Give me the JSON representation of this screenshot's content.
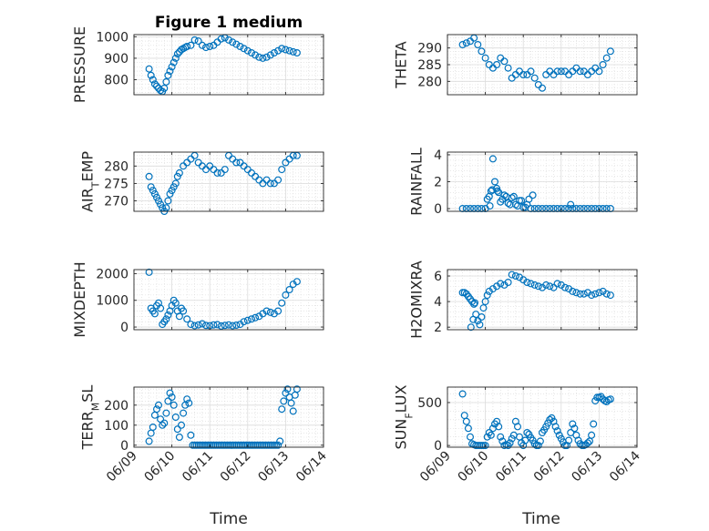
{
  "chart_data": {
    "title": "Figure 1 medium",
    "xlabel": "Time",
    "xticks": [
      "06/09",
      "06/10",
      "06/11",
      "06/12",
      "06/13",
      "06/14"
    ],
    "xlim": [
      0,
      5
    ],
    "marker": "open-circle",
    "marker_color": "#0072BD",
    "grid": "major+minor dotted",
    "panels": [
      {
        "name": "pressure",
        "type": "scatter",
        "ylabel": "PRESSURE",
        "ylabel_sub": "",
        "ylim": [
          730,
          1010
        ],
        "yticks": [
          800,
          900,
          1000
        ],
        "x": [
          0.4,
          0.45,
          0.5,
          0.55,
          0.6,
          0.65,
          0.7,
          0.75,
          0.8,
          0.85,
          0.9,
          0.95,
          1.0,
          1.05,
          1.1,
          1.15,
          1.2,
          1.25,
          1.3,
          1.35,
          1.4,
          1.5,
          1.6,
          1.7,
          1.8,
          1.9,
          2.0,
          2.1,
          2.2,
          2.3,
          2.4,
          2.5,
          2.6,
          2.7,
          2.8,
          2.9,
          3.0,
          3.1,
          3.2,
          3.3,
          3.4,
          3.5,
          3.6,
          3.7,
          3.8,
          3.9,
          4.0,
          4.1,
          4.2,
          4.3
        ],
        "y": [
          850,
          820,
          800,
          780,
          770,
          760,
          750,
          745,
          760,
          790,
          820,
          840,
          860,
          880,
          900,
          920,
          930,
          940,
          945,
          950,
          955,
          960,
          985,
          980,
          960,
          950,
          955,
          960,
          975,
          990,
          995,
          985,
          975,
          965,
          955,
          945,
          935,
          925,
          915,
          905,
          900,
          905,
          915,
          925,
          935,
          945,
          940,
          935,
          930,
          925
        ]
      },
      {
        "name": "theta",
        "type": "scatter",
        "ylabel": "THETA",
        "ylabel_sub": "",
        "ylim": [
          276,
          294
        ],
        "yticks": [
          280,
          285,
          290
        ],
        "x": [
          0.4,
          0.5,
          0.6,
          0.7,
          0.8,
          0.9,
          1.0,
          1.1,
          1.2,
          1.3,
          1.4,
          1.5,
          1.6,
          1.7,
          1.8,
          1.9,
          2.0,
          2.1,
          2.2,
          2.3,
          2.4,
          2.5,
          2.6,
          2.7,
          2.8,
          2.9,
          3.0,
          3.1,
          3.2,
          3.3,
          3.4,
          3.5,
          3.6,
          3.7,
          3.8,
          3.9,
          4.0,
          4.1,
          4.2,
          4.3
        ],
        "y": [
          291,
          291.5,
          292,
          293,
          291,
          289,
          287,
          285,
          284,
          285,
          287,
          286,
          284,
          281,
          282,
          283,
          282,
          282,
          283,
          281,
          279,
          278,
          282,
          283,
          282,
          283,
          283,
          283,
          282,
          283,
          284,
          283,
          283,
          282,
          283,
          284,
          283,
          285,
          287,
          289
        ]
      },
      {
        "name": "air-temp",
        "type": "scatter",
        "ylabel": "AIR",
        "ylabel_sub": "T",
        "ylabel_suffix": "EMP",
        "ylim": [
          267,
          284
        ],
        "yticks": [
          270,
          275,
          280
        ],
        "x": [
          0.4,
          0.45,
          0.5,
          0.55,
          0.6,
          0.65,
          0.7,
          0.75,
          0.8,
          0.85,
          0.9,
          0.95,
          1.0,
          1.05,
          1.1,
          1.15,
          1.2,
          1.3,
          1.4,
          1.5,
          1.6,
          1.7,
          1.8,
          1.9,
          2.0,
          2.1,
          2.2,
          2.3,
          2.4,
          2.5,
          2.6,
          2.7,
          2.8,
          2.9,
          3.0,
          3.1,
          3.2,
          3.3,
          3.4,
          3.5,
          3.6,
          3.7,
          3.8,
          3.9,
          4.0,
          4.1,
          4.2,
          4.3
        ],
        "y": [
          277,
          274,
          273,
          272,
          271,
          270,
          269,
          268,
          267,
          268,
          270,
          272,
          273,
          274,
          275,
          277,
          278,
          280,
          281,
          282,
          283,
          281,
          280,
          279,
          280,
          279,
          278,
          278,
          279,
          283,
          282,
          281,
          281,
          280,
          279,
          278,
          277,
          276,
          275,
          276,
          275,
          275,
          276,
          279,
          281,
          282,
          283,
          283
        ]
      },
      {
        "name": "rainfall",
        "type": "scatter",
        "ylabel": "RAINFALL",
        "ylabel_sub": "",
        "ylim": [
          -0.2,
          4.2
        ],
        "yticks": [
          0,
          2,
          4
        ],
        "x": [
          0.4,
          0.5,
          0.6,
          0.7,
          0.8,
          0.9,
          1.0,
          1.05,
          1.1,
          1.15,
          1.2,
          1.25,
          1.3,
          1.35,
          1.4,
          1.5,
          1.6,
          1.7,
          1.8,
          1.9,
          2.0,
          2.1,
          2.2,
          2.3,
          2.4,
          2.5,
          2.6,
          2.7,
          2.8,
          2.9,
          3.0,
          3.1,
          3.2,
          3.3,
          3.4,
          3.5,
          3.6,
          3.7,
          3.8,
          3.9,
          4.0,
          4.1,
          4.2,
          4.3,
          1.12,
          1.18,
          1.32,
          1.45,
          1.55,
          1.65,
          1.75,
          1.85,
          1.95,
          2.05,
          2.15,
          2.25,
          3.25
        ],
        "y": [
          0,
          0,
          0,
          0,
          0,
          0,
          0,
          0.7,
          0.9,
          1.3,
          3.7,
          2.0,
          1.5,
          1.2,
          0.5,
          1.0,
          0.4,
          0.8,
          0.3,
          0.6,
          0.1,
          0.3,
          0,
          0,
          0,
          0,
          0,
          0,
          0,
          0,
          0,
          0,
          0,
          0,
          0,
          0,
          0,
          0,
          0,
          0,
          0,
          0,
          0,
          0,
          0.2,
          1.4,
          1.3,
          0.7,
          0.9,
          0.3,
          0.9,
          0.2,
          0.6,
          0.1,
          0.7,
          1.0,
          0.3
        ]
      },
      {
        "name": "mixdepth",
        "type": "scatter",
        "ylabel": "MIXDEPTH",
        "ylabel_sub": "",
        "ylim": [
          -100,
          2150
        ],
        "yticks": [
          0,
          1000,
          2000
        ],
        "x": [
          0.4,
          0.45,
          0.5,
          0.55,
          0.6,
          0.65,
          0.7,
          0.75,
          0.8,
          0.85,
          0.9,
          0.95,
          1.0,
          1.05,
          1.1,
          1.15,
          1.2,
          1.25,
          1.3,
          1.4,
          1.5,
          1.6,
          1.7,
          1.8,
          1.9,
          2.0,
          2.1,
          2.2,
          2.3,
          2.4,
          2.5,
          2.6,
          2.7,
          2.8,
          2.9,
          3.0,
          3.1,
          3.2,
          3.3,
          3.4,
          3.5,
          3.6,
          3.7,
          3.8,
          3.9,
          4.0,
          4.1,
          4.2,
          4.3
        ],
        "y": [
          2050,
          700,
          600,
          500,
          800,
          900,
          700,
          100,
          200,
          300,
          450,
          600,
          800,
          1000,
          900,
          600,
          400,
          700,
          600,
          300,
          100,
          50,
          80,
          120,
          60,
          50,
          80,
          90,
          40,
          60,
          80,
          50,
          70,
          100,
          200,
          250,
          300,
          350,
          400,
          500,
          600,
          550,
          500,
          600,
          900,
          1200,
          1400,
          1600,
          1700
        ]
      },
      {
        "name": "h2omixra",
        "type": "scatter",
        "ylabel": "H2OMIXRA",
        "ylabel_sub": "",
        "ylim": [
          1.8,
          6.5
        ],
        "yticks": [
          2,
          4,
          6
        ],
        "x": [
          0.4,
          0.45,
          0.5,
          0.55,
          0.6,
          0.65,
          0.7,
          0.75,
          0.8,
          0.85,
          0.9,
          0.95,
          1.0,
          1.05,
          1.1,
          1.2,
          1.3,
          1.4,
          1.5,
          1.6,
          1.7,
          1.8,
          1.9,
          2.0,
          2.1,
          2.2,
          2.3,
          2.4,
          2.5,
          2.6,
          2.7,
          2.8,
          2.9,
          3.0,
          3.1,
          3.2,
          3.3,
          3.4,
          3.5,
          3.6,
          3.7,
          3.8,
          3.9,
          4.0,
          4.1,
          4.2,
          4.3,
          0.62,
          0.68,
          0.72
        ],
        "y": [
          4.7,
          4.7,
          4.6,
          4.4,
          4.2,
          4.0,
          3.8,
          3.0,
          2.5,
          2.2,
          2.8,
          3.5,
          4.0,
          4.5,
          4.8,
          5.0,
          5.2,
          5.4,
          5.3,
          5.5,
          6.1,
          6.0,
          5.9,
          5.7,
          5.5,
          5.4,
          5.3,
          5.2,
          5.1,
          5.3,
          5.2,
          5.1,
          5.4,
          5.3,
          5.1,
          5.0,
          4.8,
          4.7,
          4.6,
          4.6,
          4.7,
          4.5,
          4.6,
          4.7,
          4.8,
          4.6,
          4.5,
          2.0,
          2.6,
          3.9
        ]
      },
      {
        "name": "terr-msl",
        "type": "scatter",
        "ylabel": "TERR",
        "ylabel_sub": "M",
        "ylabel_suffix": "SL",
        "ylim": [
          -10,
          290
        ],
        "yticks": [
          0,
          100,
          200
        ],
        "x": [
          0.4,
          0.45,
          0.5,
          0.55,
          0.6,
          0.65,
          0.7,
          0.75,
          0.8,
          0.85,
          0.9,
          0.95,
          1.0,
          1.05,
          1.1,
          1.15,
          1.2,
          1.25,
          1.3,
          1.35,
          1.4,
          1.45,
          1.5,
          1.55,
          1.6,
          1.65,
          1.7,
          1.75,
          1.8,
          1.85,
          1.9,
          1.95,
          2.0,
          2.05,
          2.1,
          2.15,
          2.2,
          2.25,
          2.3,
          2.35,
          2.4,
          2.45,
          2.5,
          2.55,
          2.6,
          2.65,
          2.7,
          2.75,
          2.8,
          2.85,
          2.9,
          2.95,
          3.0,
          3.05,
          3.1,
          3.15,
          3.2,
          3.25,
          3.3,
          3.35,
          3.4,
          3.45,
          3.5,
          3.55,
          3.6,
          3.65,
          3.7,
          3.75,
          3.8,
          3.85,
          3.9,
          3.95,
          4.0,
          4.05,
          4.1,
          4.15,
          4.2,
          4.25,
          4.3
        ],
        "y": [
          20,
          60,
          90,
          150,
          180,
          200,
          130,
          100,
          110,
          160,
          220,
          260,
          240,
          200,
          140,
          80,
          40,
          100,
          160,
          200,
          230,
          210,
          50,
          0,
          0,
          0,
          0,
          0,
          0,
          0,
          0,
          0,
          0,
          0,
          0,
          0,
          0,
          0,
          0,
          0,
          0,
          0,
          0,
          0,
          0,
          0,
          0,
          0,
          0,
          0,
          0,
          0,
          0,
          0,
          0,
          0,
          0,
          0,
          0,
          0,
          0,
          0,
          0,
          0,
          0,
          0,
          0,
          0,
          0,
          20,
          180,
          220,
          260,
          280,
          240,
          210,
          170,
          250,
          280
        ]
      },
      {
        "name": "sun-flux",
        "type": "scatter",
        "ylabel": "SUN",
        "ylabel_sub": "F",
        "ylabel_suffix": "LUX",
        "ylim": [
          -20,
          680
        ],
        "yticks": [
          0,
          500
        ],
        "x": [
          0.4,
          0.45,
          0.5,
          0.55,
          0.6,
          0.65,
          0.7,
          0.75,
          0.8,
          0.85,
          0.9,
          0.95,
          1.0,
          1.05,
          1.1,
          1.15,
          1.2,
          1.25,
          1.3,
          1.35,
          1.4,
          1.45,
          1.5,
          1.55,
          1.6,
          1.65,
          1.7,
          1.75,
          1.8,
          1.85,
          1.9,
          1.95,
          2.0,
          2.05,
          2.1,
          2.15,
          2.2,
          2.25,
          2.3,
          2.35,
          2.4,
          2.45,
          2.5,
          2.55,
          2.6,
          2.65,
          2.7,
          2.75,
          2.8,
          2.85,
          2.9,
          2.95,
          3.0,
          3.05,
          3.1,
          3.15,
          3.2,
          3.25,
          3.3,
          3.35,
          3.4,
          3.45,
          3.5,
          3.55,
          3.6,
          3.65,
          3.7,
          3.75,
          3.8,
          3.85,
          3.9,
          3.95,
          4.0,
          4.05,
          4.1,
          4.15,
          4.2,
          4.25,
          4.3
        ],
        "y": [
          600,
          350,
          280,
          200,
          100,
          20,
          10,
          0,
          0,
          0,
          0,
          0,
          0,
          100,
          150,
          120,
          200,
          250,
          280,
          220,
          100,
          50,
          0,
          10,
          0,
          30,
          80,
          120,
          280,
          220,
          100,
          30,
          0,
          60,
          150,
          130,
          90,
          60,
          20,
          0,
          0,
          50,
          150,
          180,
          220,
          260,
          300,
          320,
          280,
          220,
          170,
          120,
          80,
          40,
          0,
          0,
          60,
          150,
          250,
          200,
          120,
          60,
          20,
          0,
          0,
          10,
          30,
          50,
          120,
          250,
          520,
          560,
          560,
          570,
          540,
          520,
          510,
          530,
          540
        ]
      }
    ]
  }
}
